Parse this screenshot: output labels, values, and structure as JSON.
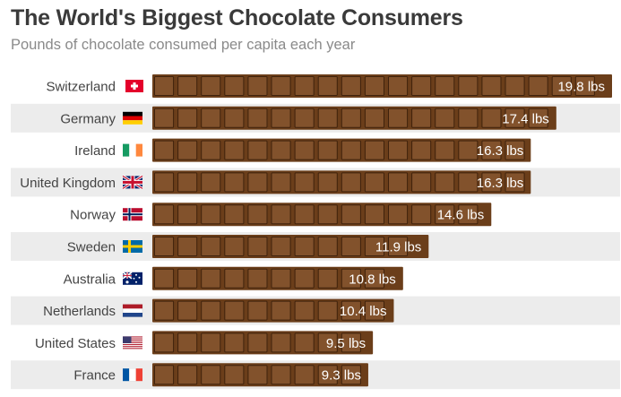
{
  "title": "The World's Biggest Chocolate Consumers",
  "subtitle": "Pounds of chocolate consumed per capita each year",
  "colors": {
    "bar": "#6b3e1a",
    "bar_square": "#82522c",
    "bar_square_border": "#3f220c",
    "row_stripe": "#ececec",
    "text": "#444444",
    "value_text": "#ffffff"
  },
  "chart_data": {
    "type": "bar",
    "orientation": "horizontal",
    "unit": "lbs",
    "xlim": [
      0,
      19.8
    ],
    "categories": [
      "Switzerland",
      "Germany",
      "Ireland",
      "United Kingdom",
      "Norway",
      "Sweden",
      "Australia",
      "Netherlands",
      "United States",
      "France"
    ],
    "values": [
      19.8,
      17.4,
      16.3,
      16.3,
      14.6,
      11.9,
      10.8,
      10.4,
      9.5,
      9.3
    ],
    "value_labels": [
      "19.8 lbs",
      "17.4 lbs",
      "16.3 lbs",
      "16.3 lbs",
      "14.6 lbs",
      "11.9 lbs",
      "10.8 lbs",
      "10.4 lbs",
      "9.5 lbs",
      "9.3 lbs"
    ],
    "flags": [
      "flag-switzerland-icon",
      "flag-germany-icon",
      "flag-ireland-icon",
      "flag-united-kingdom-icon",
      "flag-norway-icon",
      "flag-sweden-icon",
      "flag-australia-icon",
      "flag-netherlands-icon",
      "flag-united-states-icon",
      "flag-france-icon"
    ]
  }
}
